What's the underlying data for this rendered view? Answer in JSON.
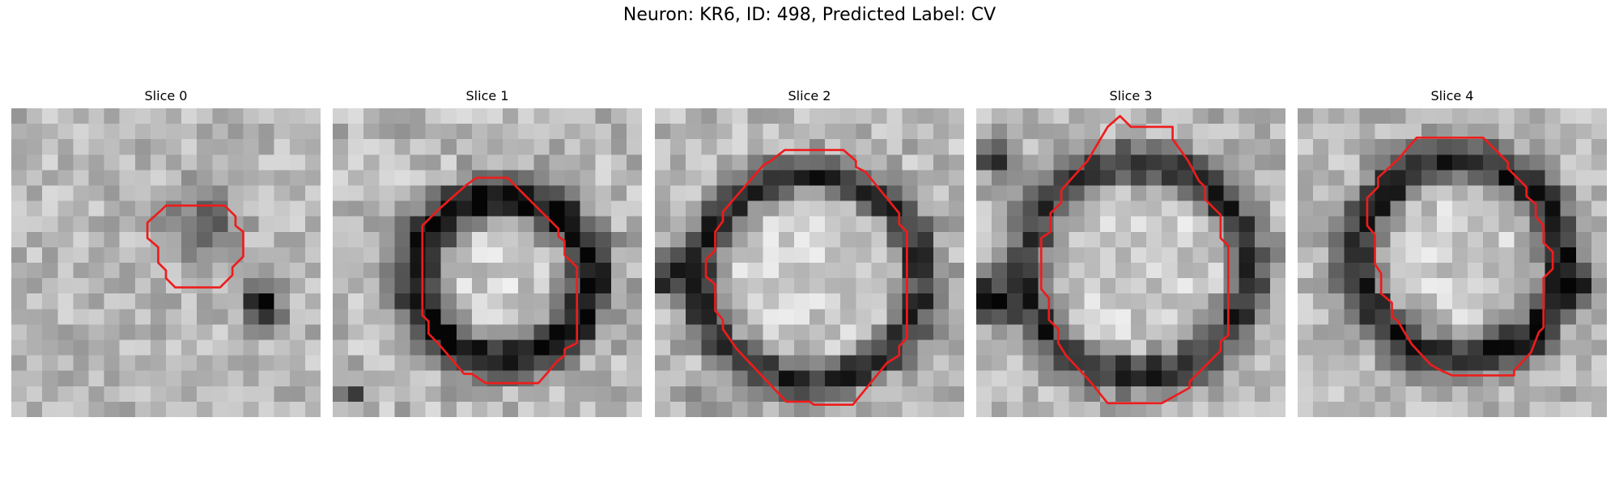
{
  "figure": {
    "title": "Neuron: KR6, ID: 498, Predicted Label: CV",
    "contour_color": "#ee1c1c",
    "panels": [
      {
        "title": "Slice 0",
        "seed": 11,
        "contrast": 0.65,
        "contour": [
          [
            10,
            6.3
          ],
          [
            13.8,
            6.3
          ],
          [
            14.5,
            7
          ],
          [
            14.5,
            7.6
          ],
          [
            15,
            8
          ],
          [
            15,
            9.6
          ],
          [
            14.3,
            10.3
          ],
          [
            14.3,
            10.8
          ],
          [
            13.5,
            11.6
          ],
          [
            10.6,
            11.6
          ],
          [
            10,
            11
          ],
          [
            10,
            10.5
          ],
          [
            9.5,
            10
          ],
          [
            9.5,
            9
          ],
          [
            8.8,
            8.4
          ],
          [
            8.8,
            7.4
          ],
          [
            9.7,
            6.6
          ]
        ],
        "ring": null,
        "dark_spots": [
          [
            16.2,
            12.8,
            1.2,
            0.85
          ],
          [
            12.3,
            7.5,
            2.2,
            0.35
          ]
        ]
      },
      {
        "title": "Slice 1",
        "seed": 23,
        "contrast": 0.75,
        "contour": [
          [
            9.3,
            4.5
          ],
          [
            11.3,
            4.5
          ],
          [
            14.6,
            7.8
          ],
          [
            14.6,
            8.3
          ],
          [
            15,
            8.6
          ],
          [
            15,
            9.5
          ],
          [
            15.8,
            10.3
          ],
          [
            15.8,
            15.2
          ],
          [
            15,
            15.6
          ],
          [
            15,
            16
          ],
          [
            14.5,
            16.4
          ],
          [
            14,
            17
          ],
          [
            13.3,
            17.8
          ],
          [
            9.9,
            17.8
          ],
          [
            9,
            17.2
          ],
          [
            8.5,
            17.2
          ],
          [
            6.8,
            15.2
          ],
          [
            6.2,
            14.6
          ],
          [
            6.2,
            13.8
          ],
          [
            5.8,
            13.4
          ],
          [
            5.8,
            7.6
          ],
          [
            6.8,
            6.6
          ],
          [
            8.6,
            5
          ]
        ],
        "ring": [
          11,
          11,
          5.6,
          5.2,
          1.6,
          0.7
        ],
        "dark_spots": [
          [
            1.5,
            18.5,
            1.0,
            0.4
          ]
        ]
      },
      {
        "title": "Slice 2",
        "seed": 37,
        "contrast": 0.7,
        "contour": [
          [
            8.4,
            2.7
          ],
          [
            12.2,
            2.7
          ],
          [
            13,
            3.4
          ],
          [
            13,
            3.8
          ],
          [
            13.6,
            4.1
          ],
          [
            15.8,
            6.8
          ],
          [
            15.8,
            7.5
          ],
          [
            16.3,
            8
          ],
          [
            16.3,
            14.9
          ],
          [
            15.8,
            15.4
          ],
          [
            15.8,
            16
          ],
          [
            15,
            16.5
          ],
          [
            12.8,
            19.2
          ],
          [
            10.3,
            19.2
          ],
          [
            10,
            19
          ],
          [
            8.5,
            19
          ],
          [
            5.3,
            15.6
          ],
          [
            4.4,
            14.3
          ],
          [
            4.4,
            13.7
          ],
          [
            3.9,
            13.1
          ],
          [
            3.9,
            11.4
          ],
          [
            3.3,
            10.9
          ],
          [
            3.3,
            9.8
          ],
          [
            3.9,
            9.2
          ],
          [
            3.9,
            8
          ],
          [
            4.4,
            7.3
          ],
          [
            4.4,
            6.7
          ],
          [
            7,
            3.7
          ],
          [
            7.5,
            3.4
          ]
        ],
        "ring": [
          10,
          11,
          7.2,
          6.6,
          1.4,
          0.55
        ],
        "dark_spots": [
          [
            0.6,
            11,
            1.3,
            0.55
          ],
          [
            3,
            19.5,
            1.2,
            0.3
          ]
        ]
      },
      {
        "title": "Slice 3",
        "seed": 53,
        "contrast": 0.72,
        "contour": [
          [
            9.3,
            0.5
          ],
          [
            10,
            1.2
          ],
          [
            12.7,
            1.2
          ],
          [
            12.7,
            2
          ],
          [
            13.7,
            3.4
          ],
          [
            14.4,
            4.7
          ],
          [
            14.8,
            5.1
          ],
          [
            14.8,
            5.9
          ],
          [
            15.8,
            6.9
          ],
          [
            15.8,
            8.4
          ],
          [
            16.3,
            8.9
          ],
          [
            16.3,
            14.7
          ],
          [
            15.8,
            15.1
          ],
          [
            15.8,
            15.7
          ],
          [
            13.8,
            17.7
          ],
          [
            13.8,
            18.1
          ],
          [
            12.9,
            18.6
          ],
          [
            12,
            19.1
          ],
          [
            10.2,
            19.1
          ],
          [
            8.5,
            19.1
          ],
          [
            7.2,
            17.5
          ],
          [
            5.8,
            16
          ],
          [
            5.3,
            15.2
          ],
          [
            5.3,
            14.3
          ],
          [
            4.7,
            13.7
          ],
          [
            4.7,
            12.3
          ],
          [
            4.2,
            11.7
          ],
          [
            4.2,
            8.4
          ],
          [
            4.8,
            8
          ],
          [
            4.8,
            6.8
          ],
          [
            5.5,
            6.1
          ],
          [
            5.5,
            5.3
          ],
          [
            7.2,
            3.4
          ],
          [
            8.5,
            1.2
          ]
        ],
        "ring": [
          10.4,
          10.4,
          7.2,
          6.8,
          1.4,
          0.55
        ],
        "dark_spots": [
          [
            1.2,
            3.2,
            1.0,
            0.8
          ],
          [
            0.8,
            12.5,
            1.5,
            0.7
          ]
        ]
      },
      {
        "title": "Slice 4",
        "seed": 71,
        "contrast": 0.68,
        "contour": [
          [
            7.7,
            1.9
          ],
          [
            12,
            1.9
          ],
          [
            13.6,
            3.5
          ],
          [
            13.6,
            3.9
          ],
          [
            14.8,
            5.1
          ],
          [
            14.8,
            5.7
          ],
          [
            15.4,
            6.2
          ],
          [
            15.4,
            7
          ],
          [
            15.9,
            7.6
          ],
          [
            15.9,
            8.7
          ],
          [
            16.5,
            9.3
          ],
          [
            16.5,
            10.4
          ],
          [
            15.9,
            11
          ],
          [
            15.9,
            14.2
          ],
          [
            15.6,
            14.5
          ],
          [
            15.1,
            15.8
          ],
          [
            14,
            17
          ],
          [
            14,
            17.3
          ],
          [
            12,
            17.3
          ],
          [
            10,
            17.3
          ],
          [
            9.3,
            17
          ],
          [
            8.6,
            16.6
          ],
          [
            7.4,
            15.3
          ],
          [
            6.9,
            14.5
          ],
          [
            6.5,
            13.8
          ],
          [
            6.1,
            13.5
          ],
          [
            6.1,
            12.6
          ],
          [
            5.4,
            12
          ],
          [
            5.4,
            10.7
          ],
          [
            5,
            10.1
          ],
          [
            5,
            8.2
          ],
          [
            4.5,
            7.6
          ],
          [
            4.5,
            5.8
          ],
          [
            5.2,
            5.1
          ],
          [
            5.2,
            4.5
          ],
          [
            6.5,
            3.3
          ]
        ],
        "ring": [
          10.5,
          9.8,
          6.6,
          6.3,
          1.5,
          0.6
        ],
        "dark_spots": [
          [
            15.7,
            14.7,
            0.6,
            0.9
          ],
          [
            18.3,
            11.5,
            1.0,
            0.45
          ]
        ]
      }
    ]
  }
}
